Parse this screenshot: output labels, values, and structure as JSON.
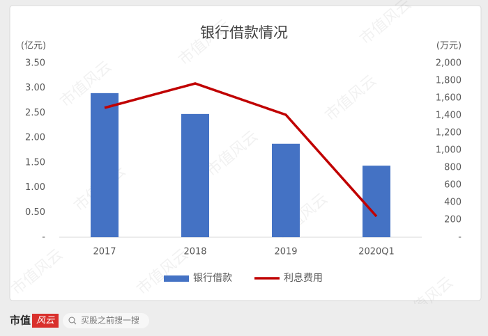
{
  "chart_data": {
    "type": "bar-line",
    "title": "银行借款情况",
    "y_label": "(亿元)",
    "y2_label": "(万元)",
    "categories": [
      "2017",
      "2018",
      "2019",
      "2020Q1"
    ],
    "series": [
      {
        "name": "银行借款",
        "color": "#4472c4",
        "type": "bar",
        "values": [
          2.9,
          2.48,
          1.88,
          1.44
        ]
      },
      {
        "name": "利息费用",
        "color": "#c00000",
        "type": "line",
        "axis": "y2",
        "values": [
          1488,
          1768,
          1408,
          240
        ]
      }
    ],
    "ylim": [
      0,
      3.5
    ],
    "yticks": [
      {
        "value": 0,
        "label": "-"
      },
      {
        "value": 0.5,
        "label": "0.50"
      },
      {
        "value": 1,
        "label": "1.00"
      },
      {
        "value": 1.5,
        "label": "1.50"
      },
      {
        "value": 2,
        "label": "2.00"
      },
      {
        "value": 2.5,
        "label": "2.50"
      },
      {
        "value": 3,
        "label": "3.00"
      },
      {
        "value": 3.5,
        "label": "3.50"
      }
    ],
    "y2lim": [
      0,
      2000
    ],
    "y2ticks": [
      {
        "value": 0,
        "label": "-"
      },
      200,
      400,
      600,
      800,
      {
        "value": 1000,
        "label": "1,000"
      },
      {
        "value": 1200,
        "label": "1,200"
      },
      {
        "value": 1400,
        "label": "1,400"
      },
      {
        "value": 1600,
        "label": "1,600"
      },
      {
        "value": 1800,
        "label": "1,800"
      },
      {
        "value": 2000,
        "label": "2,000"
      }
    ],
    "grid": false
  },
  "watermark": "市值风云",
  "footer": {
    "brand": "市值",
    "logo": "风云",
    "search": "买股之前搜一搜"
  }
}
